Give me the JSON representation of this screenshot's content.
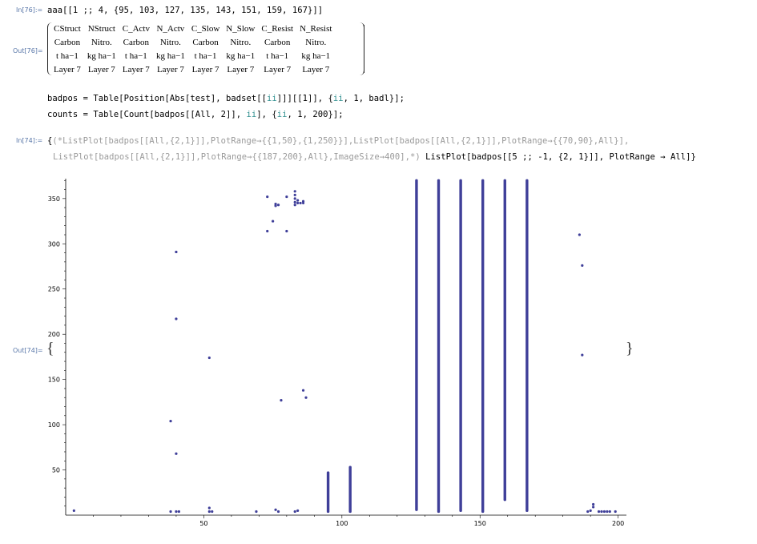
{
  "cells": {
    "in76_label": "In[76]:=",
    "in76_code_a": "aaa[[1 ;; 4, {95, 103, 127, 135, 143, 151, 159, 167}]]",
    "out76_label": "Out[76]=",
    "matrix": [
      [
        "CStruct",
        "NStruct",
        "C_Actv",
        "N_Actv",
        "C_Slow",
        "N_Slow",
        "C_Resist",
        "N_Resist"
      ],
      [
        "Carbon",
        "Nitro.",
        "Carbon",
        "Nitro.",
        "Carbon",
        "Nitro.",
        "Carbon",
        "Nitro."
      ],
      [
        "t ha−1",
        "kg ha−1",
        "t ha−1",
        "kg ha−1",
        "t ha−1",
        "kg ha−1",
        "t ha−1",
        "kg ha−1"
      ],
      [
        "Layer 7",
        "Layer 7",
        "Layer 7",
        "Layer 7",
        "Layer 7",
        "Layer 7",
        "Layer 7",
        "Layer 7"
      ]
    ],
    "badpos_line_a": "badpos = Table[Position[Abs[test], badset[[",
    "badpos_line_b": "ii",
    "badpos_line_c": "]]][[1]], {",
    "badpos_line_d": "ii",
    "badpos_line_e": ", 1, badl}];",
    "counts_line_a": "counts = Table[Count[badpos[[All, 2]], ",
    "counts_line_b": "ii",
    "counts_line_c": "], {",
    "counts_line_d": "ii",
    "counts_line_e": ", 1, 200}];",
    "in74_label": "In[74]:=",
    "in74_line1_a": "{",
    "in74_line1_comment": "(*ListPlot[badpos[[All,{2,1}]],PlotRange→{{1,50},{1,250}}],ListPlot[badpos[[All,{2,1}]],PlotRange→{{70,90},All}],",
    "in74_line2_comment": "ListPlot[badpos[[All,{2,1}]],PlotRange→{{187,200},All},ImageSize→400],*)",
    "in74_line2_code": " ListPlot[badpos[[5 ;; -1, {2, 1}]], PlotRange → All]}",
    "out74_label": "Out[74]=",
    "out74_open": "{",
    "out74_close": "}"
  },
  "chart_data": {
    "type": "scatter",
    "title": "",
    "xlabel": "",
    "ylabel": "",
    "xlim": [
      0,
      203
    ],
    "ylim": [
      0,
      372
    ],
    "x_ticks": [
      50,
      100,
      150,
      200
    ],
    "y_ticks": [
      50,
      100,
      150,
      200,
      250,
      300,
      350
    ],
    "grid": false,
    "color": "#3f3f99",
    "points": [
      [
        3,
        5
      ],
      [
        38,
        4
      ],
      [
        38,
        104
      ],
      [
        40,
        68
      ],
      [
        40,
        217
      ],
      [
        40,
        291
      ],
      [
        40,
        4
      ],
      [
        41,
        4
      ],
      [
        52,
        174
      ],
      [
        52,
        8
      ],
      [
        52,
        4
      ],
      [
        53,
        4
      ],
      [
        69,
        4
      ],
      [
        73,
        352
      ],
      [
        73,
        314
      ],
      [
        75,
        325
      ],
      [
        76,
        344
      ],
      [
        76,
        342
      ],
      [
        77,
        343
      ],
      [
        76,
        6
      ],
      [
        77,
        4
      ],
      [
        78,
        127
      ],
      [
        80,
        314
      ],
      [
        80,
        352
      ],
      [
        83,
        358
      ],
      [
        83,
        354
      ],
      [
        83,
        350
      ],
      [
        83,
        346
      ],
      [
        83,
        343
      ],
      [
        84,
        345
      ],
      [
        84,
        348
      ],
      [
        85,
        345
      ],
      [
        86,
        347
      ],
      [
        86,
        345
      ],
      [
        84,
        5
      ],
      [
        83,
        4
      ],
      [
        86,
        138
      ],
      [
        87,
        130
      ],
      [
        186,
        310
      ],
      [
        187,
        276
      ],
      [
        187,
        177
      ],
      [
        189,
        4
      ],
      [
        190,
        5
      ],
      [
        191,
        12
      ],
      [
        191,
        9
      ],
      [
        193,
        4
      ],
      [
        194,
        4
      ],
      [
        195,
        4
      ],
      [
        196,
        4
      ],
      [
        197,
        4
      ],
      [
        199,
        4
      ]
    ],
    "columns": [
      {
        "x": 95,
        "y_from": 4,
        "y_to": 47
      },
      {
        "x": 103,
        "y_from": 4,
        "y_to": 53
      },
      {
        "x": 127,
        "y_from": 6,
        "y_to": 370
      },
      {
        "x": 135,
        "y_from": 4,
        "y_to": 370
      },
      {
        "x": 143,
        "y_from": 5,
        "y_to": 370
      },
      {
        "x": 151,
        "y_from": 4,
        "y_to": 370
      },
      {
        "x": 159,
        "y_from": 17,
        "y_to": 370
      },
      {
        "x": 167,
        "y_from": 5,
        "y_to": 370
      }
    ]
  }
}
